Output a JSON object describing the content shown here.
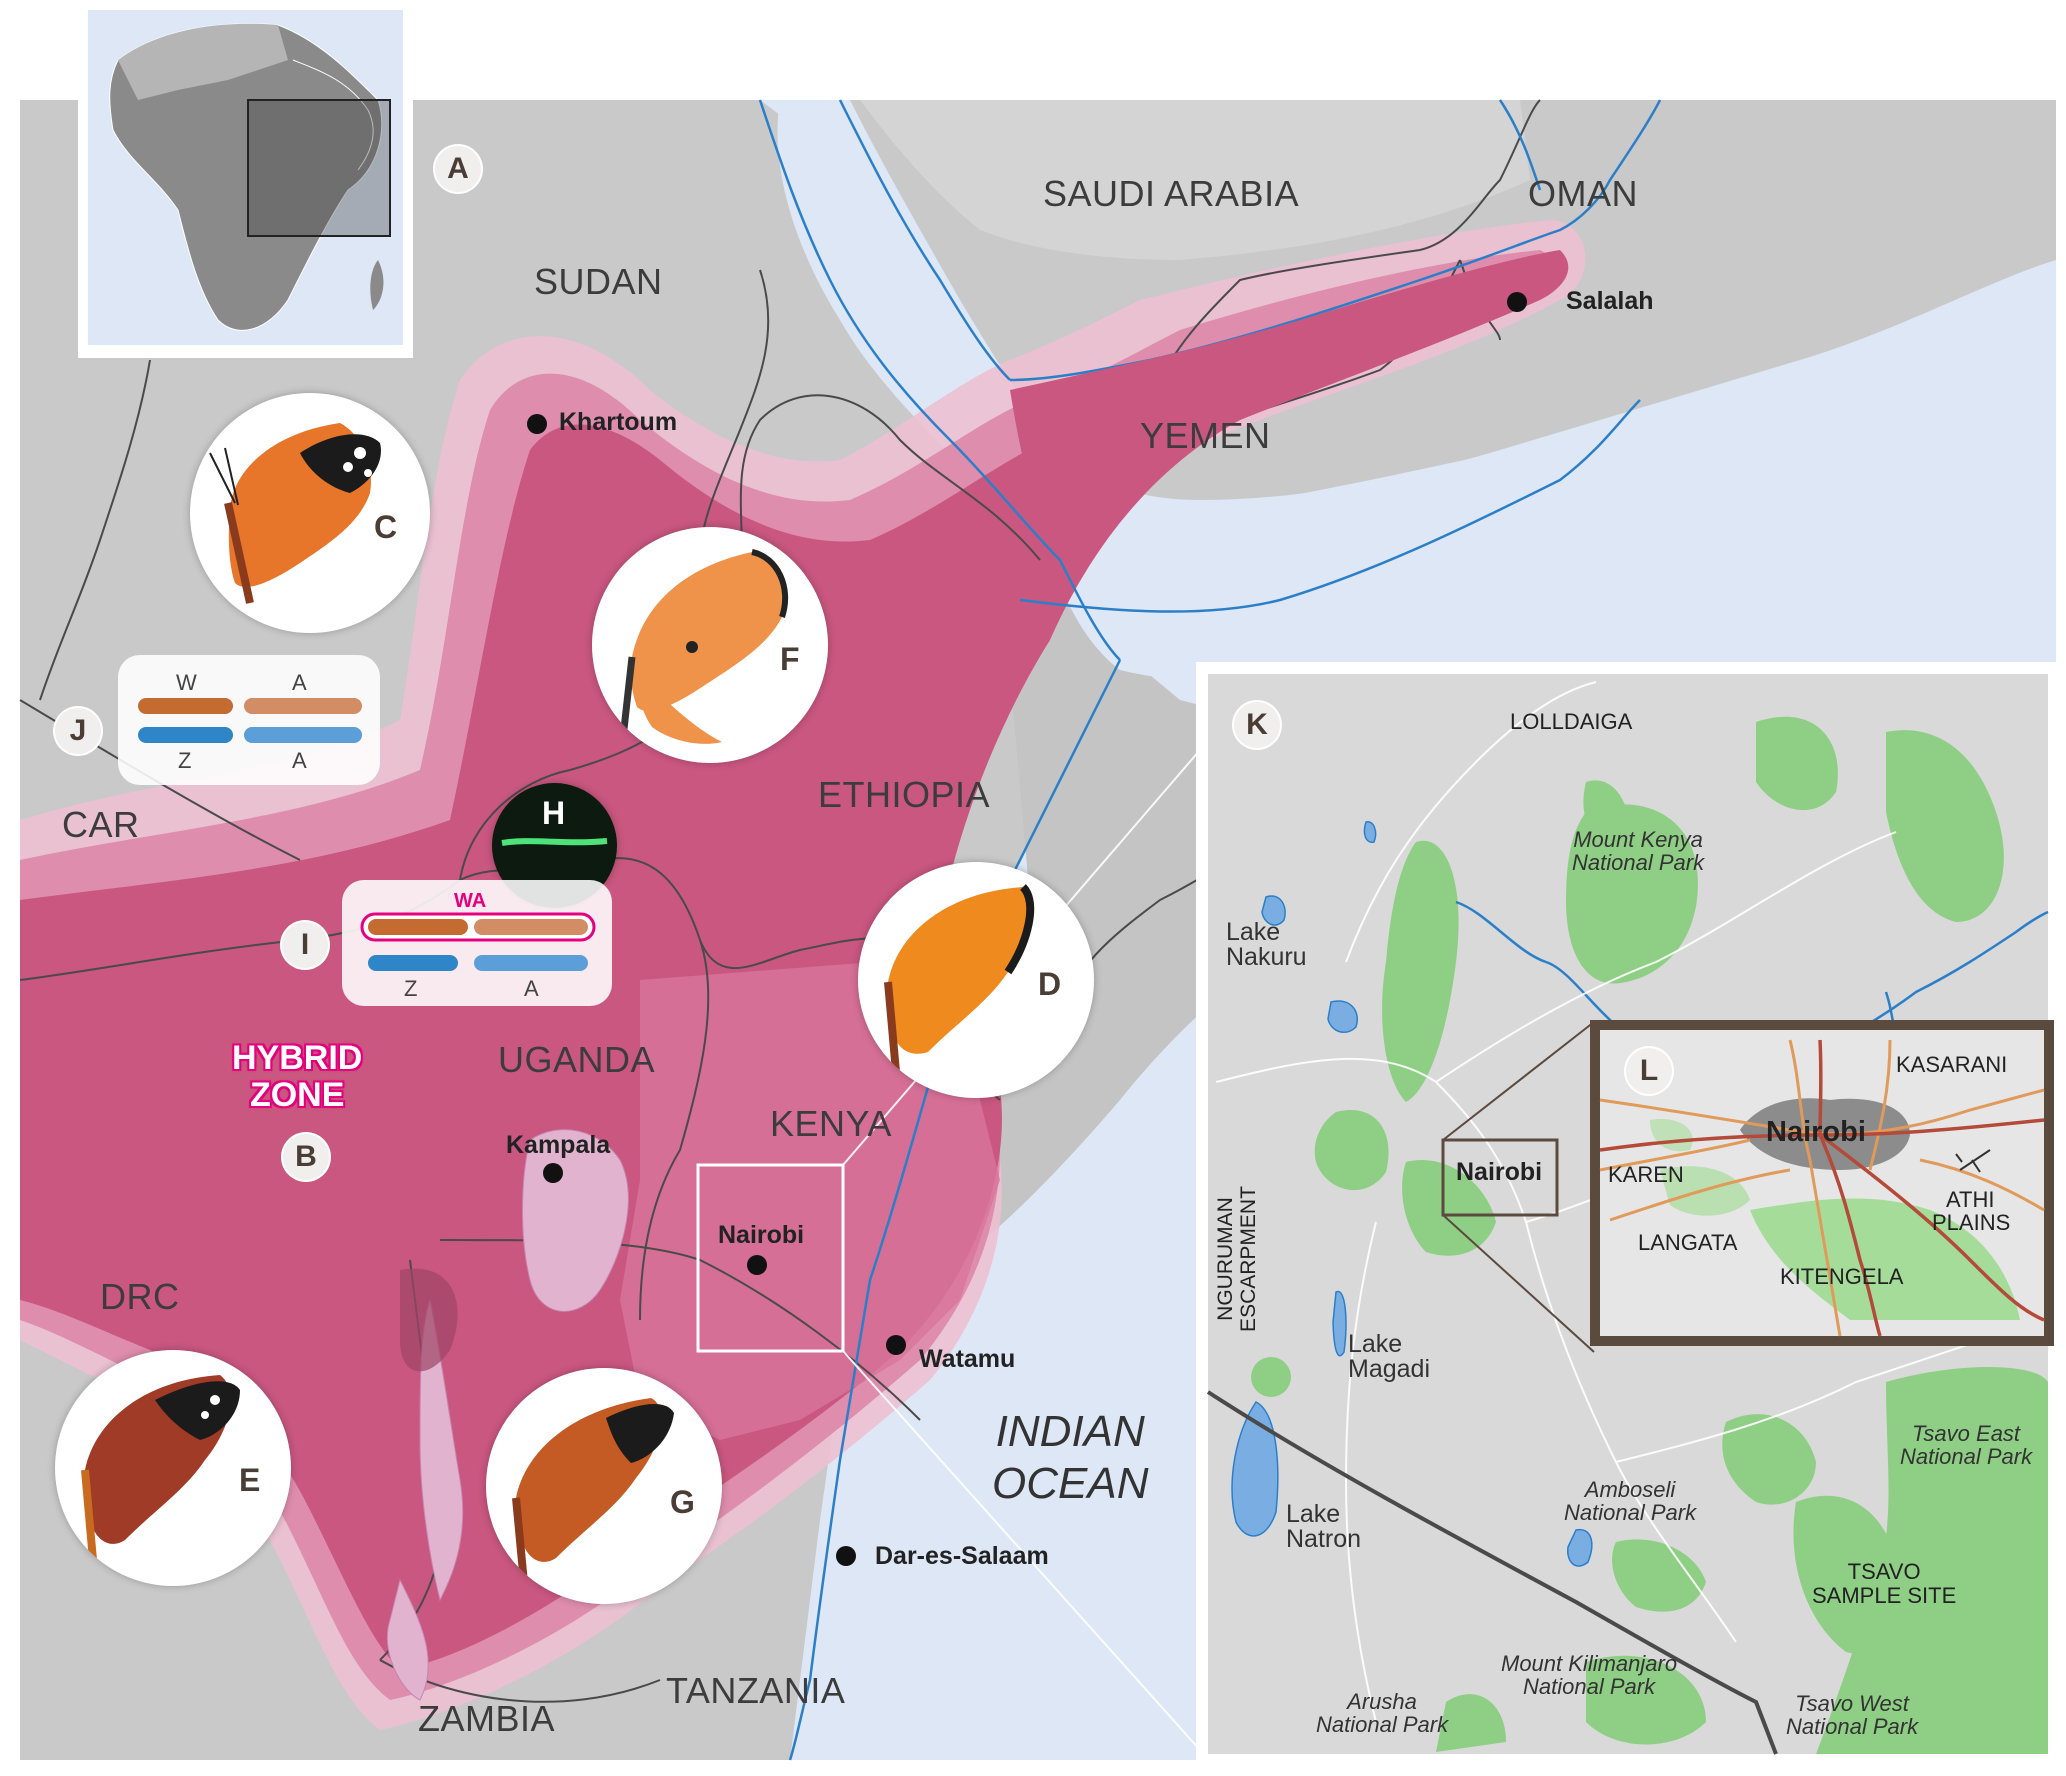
{
  "map": {
    "countries": {
      "saudi_arabia": "SAUDI ARABIA",
      "oman": "OMAN",
      "sudan": "SUDAN",
      "yemen": "YEMEN",
      "ethiopia": "ETHIOPIA",
      "car": "CAR",
      "uganda": "UGANDA",
      "kenya": "KENYA",
      "drc": "DRC",
      "tanzania": "TANZANIA",
      "zambia": "ZAMBIA"
    },
    "cities": {
      "salalah": "Salalah",
      "khartoum": "Khartoum",
      "kampala": "Kampala",
      "nairobi": "Nairobi",
      "watamu": "Watamu",
      "dar_es_salaam": "Dar-es-Salaam"
    },
    "ocean": {
      "line1": "INDIAN",
      "line2": "OCEAN"
    },
    "hybrid_zone": {
      "line1": "HYBRID",
      "line2": "ZONE"
    },
    "panel_letters": {
      "A": "A",
      "B": "B",
      "C": "C",
      "D": "D",
      "E": "E",
      "F": "F",
      "G": "G",
      "H": "H",
      "I": "I",
      "J": "J",
      "K": "K",
      "L": "L"
    },
    "chromosomes_j": {
      "top_left": "W",
      "top_right": "A",
      "bottom_left": "Z",
      "bottom_right": "A"
    },
    "chromosomes_i": {
      "fused": "WA",
      "bottom_left": "Z",
      "bottom_right": "A"
    },
    "colors": {
      "land": "#c9c9c9",
      "land_light": "#d8d8d8",
      "sea": "#dde7f5",
      "hybrid_core": "#c9577f",
      "hybrid_mid": "#dd8aaa",
      "hybrid_outer": "#ecc0d1",
      "highlight_pink": "#e4007e",
      "park_green": "#8fcf85",
      "chromo_orange": "#c46b32",
      "chromo_blue": "#2e86c9"
    }
  },
  "inset_k": {
    "places": {
      "lolldaiga": "LOLLDAIGA",
      "mount_kenya_np": [
        "Mount Kenya",
        "National Park"
      ],
      "lake_nakuru": [
        "Lake",
        "Nakuru"
      ],
      "nairobi": "Nairobi",
      "nguruman": [
        "NGURUMAN",
        "ESCARPMENT"
      ],
      "lake_magadi": [
        "Lake",
        "Magadi"
      ],
      "lake_natron": [
        "Lake",
        "Natron"
      ],
      "amboseli_np": [
        "Amboseli",
        "National Park"
      ],
      "kilimanjaro_np": [
        "Mount Kilimanjaro",
        "National Park"
      ],
      "arusha_np": [
        "Arusha",
        "National Park"
      ],
      "tsavo_east_np": [
        "Tsavo East",
        "National Park"
      ],
      "tsavo_sample": [
        "TSAVO",
        "SAMPLE SITE"
      ],
      "tsavo_west_np": [
        "Tsavo West",
        "National Park"
      ]
    }
  },
  "inset_l": {
    "places": {
      "nairobi": "Nairobi",
      "kasarani": "KASARANI",
      "karen": "KAREN",
      "athi": [
        "ATHI",
        "PLAINS"
      ],
      "langata": "LANGATA",
      "kitengela": "KITENGELA"
    }
  }
}
